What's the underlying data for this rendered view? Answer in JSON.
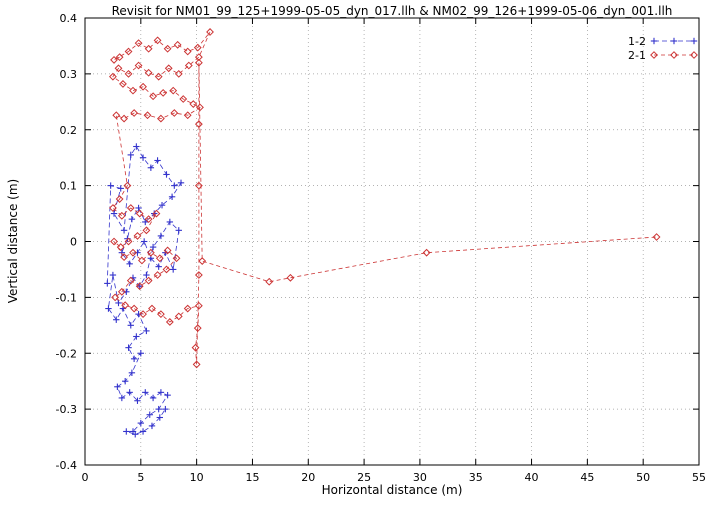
{
  "chart_data": {
    "type": "scatter",
    "title": "Revisit for NM01_99_125+1999-05-05_dyn_017.llh & NM02_99_126+1999-05-06_dyn_001.llh",
    "xlabel": "Horizontal distance (m)",
    "ylabel": "Vertical distance (m)",
    "xlim": [
      0,
      55
    ],
    "ylim": [
      -0.4,
      0.4
    ],
    "xtick_labels": [
      "0",
      "5",
      "10",
      "15",
      "20",
      "25",
      "30",
      "35",
      "40",
      "45",
      "50",
      "55"
    ],
    "ytick_labels": [
      "-0.4",
      "-0.3",
      "-0.2",
      "-0.1",
      "0",
      "0.1",
      "0.2",
      "0.3",
      "0.4"
    ],
    "grid": true,
    "legend_position": "top-right",
    "grid_color": "#999999",
    "series": [
      {
        "name": "1-2",
        "color": "#3333cc",
        "marker": "plus",
        "dash": "5,3",
        "points": [
          [
            2.0,
            -0.075
          ],
          [
            2.3,
            0.1
          ],
          [
            3.2,
            0.095
          ],
          [
            2.6,
            0.05
          ],
          [
            3.5,
            0.02
          ],
          [
            4.1,
            0.155
          ],
          [
            4.6,
            0.17
          ],
          [
            5.2,
            0.15
          ],
          [
            5.9,
            0.132
          ],
          [
            6.5,
            0.145
          ],
          [
            7.3,
            0.12
          ],
          [
            8.0,
            0.1
          ],
          [
            8.6,
            0.105
          ],
          [
            7.8,
            0.08
          ],
          [
            6.9,
            0.065
          ],
          [
            6.2,
            0.05
          ],
          [
            5.4,
            0.035
          ],
          [
            4.8,
            0.06
          ],
          [
            4.2,
            0.04
          ],
          [
            3.8,
            0.005
          ],
          [
            3.3,
            -0.02
          ],
          [
            4.0,
            -0.04
          ],
          [
            4.7,
            -0.02
          ],
          [
            5.3,
            0.0
          ],
          [
            5.9,
            -0.03
          ],
          [
            6.6,
            -0.045
          ],
          [
            7.2,
            -0.02
          ],
          [
            7.9,
            -0.05
          ],
          [
            8.4,
            0.02
          ],
          [
            7.6,
            0.035
          ],
          [
            6.8,
            0.01
          ],
          [
            6.1,
            -0.01
          ],
          [
            5.5,
            -0.06
          ],
          [
            4.9,
            -0.08
          ],
          [
            4.3,
            -0.065
          ],
          [
            3.7,
            -0.09
          ],
          [
            3.0,
            -0.11
          ],
          [
            2.5,
            -0.06
          ],
          [
            2.1,
            -0.12
          ],
          [
            2.8,
            -0.14
          ],
          [
            3.4,
            -0.12
          ],
          [
            4.1,
            -0.15
          ],
          [
            4.8,
            -0.13
          ],
          [
            5.5,
            -0.16
          ],
          [
            4.6,
            -0.17
          ],
          [
            3.9,
            -0.19
          ],
          [
            4.4,
            -0.21
          ],
          [
            5.0,
            -0.2
          ],
          [
            4.2,
            -0.235
          ],
          [
            3.6,
            -0.25
          ],
          [
            2.9,
            -0.26
          ],
          [
            3.3,
            -0.28
          ],
          [
            4.0,
            -0.27
          ],
          [
            4.7,
            -0.285
          ],
          [
            5.4,
            -0.27
          ],
          [
            6.1,
            -0.28
          ],
          [
            6.8,
            -0.27
          ],
          [
            7.4,
            -0.275
          ],
          [
            6.6,
            -0.3
          ],
          [
            5.8,
            -0.31
          ],
          [
            5.0,
            -0.325
          ],
          [
            4.3,
            -0.34
          ],
          [
            3.7,
            -0.34
          ],
          [
            4.5,
            -0.345
          ],
          [
            5.2,
            -0.34
          ],
          [
            6.0,
            -0.33
          ],
          [
            6.7,
            -0.315
          ],
          [
            7.2,
            -0.3
          ]
        ]
      },
      {
        "name": "2-1",
        "color": "#cc3333",
        "marker": "diamond",
        "dash": "4,3",
        "points": [
          [
            3.1,
            0.33
          ],
          [
            2.6,
            0.325
          ],
          [
            3.9,
            0.34
          ],
          [
            4.8,
            0.355
          ],
          [
            5.7,
            0.345
          ],
          [
            6.5,
            0.36
          ],
          [
            7.4,
            0.345
          ],
          [
            8.3,
            0.352
          ],
          [
            9.2,
            0.34
          ],
          [
            10.1,
            0.347
          ],
          [
            11.2,
            0.375
          ],
          [
            10.2,
            0.33
          ],
          [
            9.3,
            0.315
          ],
          [
            8.4,
            0.3
          ],
          [
            7.5,
            0.31
          ],
          [
            6.6,
            0.295
          ],
          [
            5.7,
            0.302
          ],
          [
            4.8,
            0.315
          ],
          [
            3.9,
            0.3
          ],
          [
            3.0,
            0.31
          ],
          [
            2.5,
            0.295
          ],
          [
            3.4,
            0.282
          ],
          [
            4.3,
            0.27
          ],
          [
            5.2,
            0.277
          ],
          [
            6.1,
            0.26
          ],
          [
            7.0,
            0.266
          ],
          [
            7.9,
            0.27
          ],
          [
            8.8,
            0.255
          ],
          [
            9.7,
            0.246
          ],
          [
            10.3,
            0.24
          ],
          [
            9.2,
            0.226
          ],
          [
            8.0,
            0.23
          ],
          [
            6.8,
            0.22
          ],
          [
            5.6,
            0.226
          ],
          [
            4.4,
            0.23
          ],
          [
            3.5,
            0.22
          ],
          [
            2.8,
            0.226
          ],
          [
            3.8,
            0.1
          ],
          [
            3.1,
            0.076
          ],
          [
            2.5,
            0.06
          ],
          [
            3.3,
            0.046
          ],
          [
            4.1,
            0.06
          ],
          [
            4.9,
            0.05
          ],
          [
            5.7,
            0.04
          ],
          [
            6.4,
            0.05
          ],
          [
            5.5,
            0.02
          ],
          [
            4.7,
            0.01
          ],
          [
            3.9,
            0.0
          ],
          [
            3.2,
            -0.01
          ],
          [
            2.6,
            0.0
          ],
          [
            3.5,
            -0.028
          ],
          [
            4.3,
            -0.02
          ],
          [
            5.1,
            -0.034
          ],
          [
            5.9,
            -0.02
          ],
          [
            6.7,
            -0.03
          ],
          [
            7.4,
            -0.016
          ],
          [
            8.2,
            -0.03
          ],
          [
            7.3,
            -0.05
          ],
          [
            6.5,
            -0.06
          ],
          [
            5.7,
            -0.07
          ],
          [
            4.9,
            -0.08
          ],
          [
            4.1,
            -0.07
          ],
          [
            3.3,
            -0.09
          ],
          [
            2.7,
            -0.1
          ],
          [
            3.6,
            -0.114
          ],
          [
            4.4,
            -0.12
          ],
          [
            5.2,
            -0.13
          ],
          [
            6.0,
            -0.12
          ],
          [
            6.8,
            -0.13
          ],
          [
            7.6,
            -0.144
          ],
          [
            8.4,
            -0.134
          ],
          [
            9.2,
            -0.12
          ],
          [
            10.2,
            -0.115
          ],
          [
            10.1,
            -0.155
          ],
          [
            9.9,
            -0.19
          ],
          [
            10.0,
            -0.22
          ],
          [
            10.2,
            -0.06
          ],
          [
            10.2,
            0.1
          ],
          [
            10.2,
            0.21
          ],
          [
            10.2,
            0.32
          ],
          [
            10.5,
            -0.035
          ],
          [
            16.5,
            -0.072
          ],
          [
            18.4,
            -0.065
          ],
          [
            30.6,
            -0.02
          ],
          [
            51.2,
            0.008
          ]
        ]
      }
    ]
  }
}
